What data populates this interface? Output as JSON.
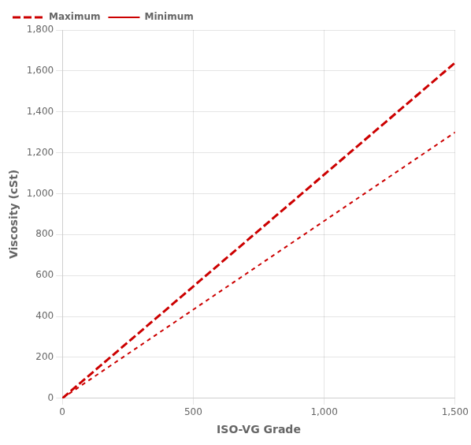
{
  "chart_data": {
    "type": "line",
    "xlabel": "ISO-VG Grade",
    "ylabel": "Viscosity (cSt)",
    "x": [
      0,
      1500
    ],
    "series": [
      {
        "name": "Maximum",
        "color": "#CC0000",
        "values": [
          0,
          1640
        ],
        "line_style": "long_dash"
      },
      {
        "name": "Minimum",
        "color": "#CC0000",
        "values": [
          0,
          1300
        ],
        "line_style": "dashed"
      }
    ],
    "xlim": [
      0,
      1500
    ],
    "ylim": [
      0,
      1800
    ],
    "xticks": [
      0,
      500,
      1000,
      1500
    ],
    "yticks": [
      0,
      200,
      400,
      600,
      800,
      1000,
      1200,
      1400,
      1600,
      1800
    ],
    "grid": true,
    "legend": "upper left"
  }
}
